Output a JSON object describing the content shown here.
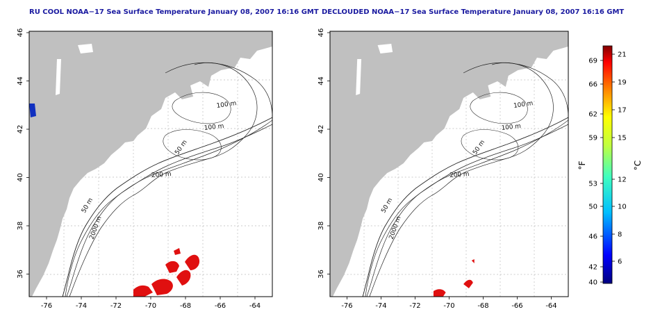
{
  "maps": [
    {
      "id": "left",
      "title": "RU COOL NOAA−17 Sea Surface Temperature January 08, 2007 16:16 GMT",
      "contour_labels": [
        "100 m",
        "100 m",
        "50 m",
        "200 m",
        "50 m",
        "2000 m"
      ],
      "show_blue_patch": true
    },
    {
      "id": "right",
      "title": "DECLOUDED NOAA−17 Sea Surface Temperature January 08, 2007 16:16 GMT",
      "contour_labels": [
        "100 m",
        "100 m",
        "50 m",
        "200 m",
        "50 m",
        "2000 m"
      ],
      "show_blue_patch": false
    }
  ],
  "axes": {
    "lon_ticks": [
      "-76",
      "-74",
      "-72",
      "-70",
      "-68",
      "-66",
      "-64"
    ],
    "lat_ticks": [
      "46",
      "44",
      "42",
      "40",
      "38",
      "36"
    ]
  },
  "colorbar": {
    "fahrenheit_label": "°F",
    "celsius_label": "°C",
    "fahrenheit_ticks": [
      "69",
      "66",
      "62",
      "59",
      "53",
      "50",
      "46",
      "42",
      "40"
    ],
    "celsius_ticks": [
      "21",
      "19",
      "17",
      "15",
      "12",
      "10",
      "8",
      "6"
    ]
  },
  "colors": {
    "land": "#c0c0c0",
    "ocean": "#ffffff",
    "warm_water": "#e01010",
    "cold_water": "#1030c0",
    "title": "#1a1aa0"
  }
}
